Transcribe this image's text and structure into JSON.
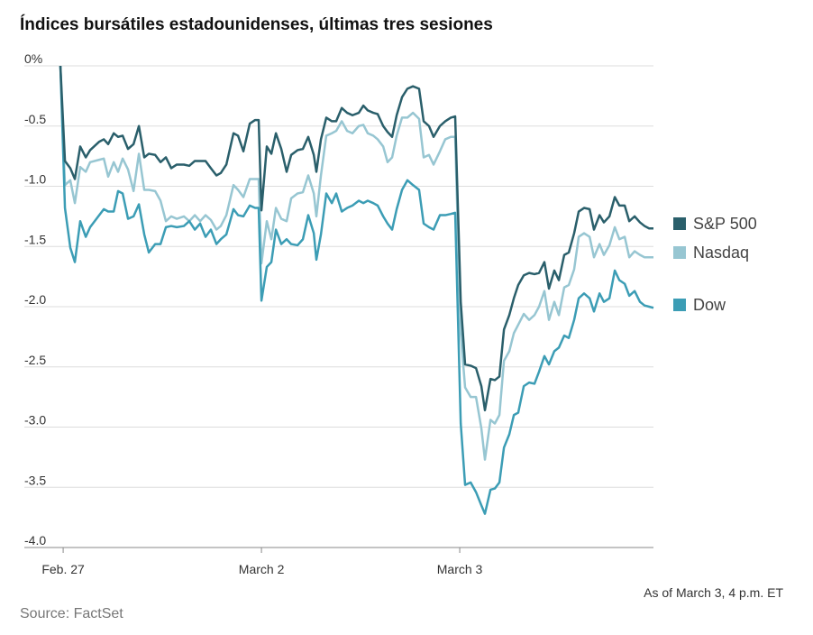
{
  "chart_data": {
    "type": "line",
    "title": "Índices bursátiles estadounidenses, últimas tres sesiones",
    "note": "As of March 3, 4 p.m. ET",
    "source": "Source: FactSet",
    "x": [
      -0.014,
      0.009,
      0.036,
      0.059,
      0.086,
      0.114,
      0.136,
      0.182,
      0.205,
      0.227,
      0.255,
      0.277,
      0.3,
      0.327,
      0.355,
      0.382,
      0.409,
      0.432,
      0.464,
      0.491,
      0.518,
      0.545,
      0.573,
      0.609,
      0.636,
      0.664,
      0.691,
      0.718,
      0.745,
      0.773,
      0.795,
      0.823,
      0.859,
      0.882,
      0.909,
      0.941,
      0.968,
      0.986,
      1.0,
      1.027,
      1.05,
      1.073,
      1.1,
      1.127,
      1.15,
      1.182,
      1.209,
      1.236,
      1.264,
      1.277,
      1.3,
      1.327,
      1.355,
      1.377,
      1.405,
      1.432,
      1.459,
      1.491,
      1.514,
      1.536,
      1.564,
      1.586,
      1.614,
      1.636,
      1.659,
      1.682,
      1.709,
      1.736,
      1.764,
      1.795,
      1.818,
      1.845,
      1.868,
      1.9,
      1.927,
      1.955,
      1.977,
      2.005,
      2.027,
      2.055,
      2.082,
      2.109,
      2.127,
      2.155,
      2.177,
      2.2,
      2.223,
      2.25,
      2.273,
      2.295,
      2.323,
      2.35,
      2.377,
      2.4,
      2.427,
      2.45,
      2.477,
      2.5,
      2.527,
      2.55,
      2.577,
      2.6,
      2.627,
      2.655,
      2.677,
      2.705,
      2.727,
      2.755,
      2.782,
      2.805,
      2.832,
      2.855,
      2.882,
      2.909,
      2.932,
      2.955,
      2.977
    ],
    "series": [
      {
        "name": "S&P 500",
        "color": "#2a5f6b",
        "values": [
          0,
          -0.79,
          -0.85,
          -0.94,
          -0.67,
          -0.76,
          -0.7,
          -0.63,
          -0.61,
          -0.65,
          -0.56,
          -0.59,
          -0.58,
          -0.69,
          -0.65,
          -0.5,
          -0.76,
          -0.73,
          -0.74,
          -0.8,
          -0.76,
          -0.85,
          -0.82,
          -0.82,
          -0.83,
          -0.79,
          -0.79,
          -0.79,
          -0.85,
          -0.91,
          -0.89,
          -0.82,
          -0.56,
          -0.58,
          -0.71,
          -0.48,
          -0.45,
          -0.45,
          -1.2,
          -0.67,
          -0.73,
          -0.56,
          -0.69,
          -0.88,
          -0.74,
          -0.7,
          -0.69,
          -0.59,
          -0.74,
          -0.88,
          -0.61,
          -0.43,
          -0.46,
          -0.46,
          -0.35,
          -0.39,
          -0.41,
          -0.39,
          -0.33,
          -0.37,
          -0.39,
          -0.4,
          -0.5,
          -0.55,
          -0.59,
          -0.41,
          -0.26,
          -0.19,
          -0.17,
          -0.19,
          -0.46,
          -0.5,
          -0.59,
          -0.5,
          -0.46,
          -0.43,
          -0.42,
          -1.96,
          -2.48,
          -2.49,
          -2.51,
          -2.66,
          -2.86,
          -2.6,
          -2.61,
          -2.58,
          -2.19,
          -2.07,
          -1.93,
          -1.82,
          -1.74,
          -1.72,
          -1.73,
          -1.72,
          -1.63,
          -1.85,
          -1.7,
          -1.78,
          -1.57,
          -1.55,
          -1.39,
          -1.21,
          -1.18,
          -1.19,
          -1.36,
          -1.24,
          -1.3,
          -1.25,
          -1.09,
          -1.16,
          -1.16,
          -1.29,
          -1.25,
          -1.3,
          -1.33,
          -1.35,
          -1.35
        ]
      },
      {
        "name": "Nasdaq",
        "color": "#97c6d2",
        "values": [
          0,
          -0.99,
          -0.95,
          -1.14,
          -0.84,
          -0.88,
          -0.8,
          -0.78,
          -0.77,
          -0.92,
          -0.8,
          -0.88,
          -0.77,
          -0.86,
          -1.04,
          -0.73,
          -1.03,
          -1.03,
          -1.04,
          -1.12,
          -1.29,
          -1.25,
          -1.27,
          -1.25,
          -1.29,
          -1.24,
          -1.29,
          -1.24,
          -1.28,
          -1.36,
          -1.33,
          -1.24,
          -0.99,
          -1.03,
          -1.09,
          -0.94,
          -0.94,
          -0.94,
          -1.64,
          -1.29,
          -1.44,
          -1.18,
          -1.27,
          -1.29,
          -1.1,
          -1.06,
          -1.05,
          -0.91,
          -1.06,
          -1.25,
          -0.91,
          -0.58,
          -0.56,
          -0.54,
          -0.46,
          -0.54,
          -0.56,
          -0.5,
          -0.49,
          -0.56,
          -0.58,
          -0.61,
          -0.67,
          -0.8,
          -0.76,
          -0.58,
          -0.43,
          -0.43,
          -0.39,
          -0.44,
          -0.76,
          -0.74,
          -0.82,
          -0.71,
          -0.61,
          -0.59,
          -0.59,
          -2.22,
          -2.67,
          -2.75,
          -2.75,
          -3.01,
          -3.27,
          -2.94,
          -2.97,
          -2.9,
          -2.45,
          -2.37,
          -2.22,
          -2.15,
          -2.06,
          -2.11,
          -2.07,
          -2.0,
          -1.87,
          -2.11,
          -1.96,
          -2.07,
          -1.84,
          -1.82,
          -1.69,
          -1.42,
          -1.39,
          -1.42,
          -1.59,
          -1.48,
          -1.57,
          -1.49,
          -1.34,
          -1.44,
          -1.42,
          -1.59,
          -1.54,
          -1.57,
          -1.59,
          -1.59,
          -1.59
        ]
      },
      {
        "name": "Dow",
        "color": "#3c9db5",
        "values": [
          0,
          -1.18,
          -1.51,
          -1.63,
          -1.29,
          -1.42,
          -1.34,
          -1.24,
          -1.19,
          -1.21,
          -1.21,
          -1.04,
          -1.06,
          -1.27,
          -1.25,
          -1.15,
          -1.4,
          -1.55,
          -1.48,
          -1.48,
          -1.34,
          -1.33,
          -1.34,
          -1.33,
          -1.29,
          -1.36,
          -1.31,
          -1.42,
          -1.36,
          -1.48,
          -1.44,
          -1.4,
          -1.19,
          -1.24,
          -1.25,
          -1.16,
          -1.18,
          -1.18,
          -1.95,
          -1.67,
          -1.63,
          -1.36,
          -1.48,
          -1.44,
          -1.48,
          -1.49,
          -1.44,
          -1.24,
          -1.39,
          -1.61,
          -1.4,
          -1.06,
          -1.14,
          -1.06,
          -1.21,
          -1.18,
          -1.16,
          -1.12,
          -1.14,
          -1.12,
          -1.14,
          -1.16,
          -1.25,
          -1.31,
          -1.36,
          -1.19,
          -1.03,
          -0.95,
          -0.99,
          -1.03,
          -1.31,
          -1.34,
          -1.36,
          -1.24,
          -1.24,
          -1.23,
          -1.22,
          -2.97,
          -3.48,
          -3.46,
          -3.54,
          -3.65,
          -3.72,
          -3.52,
          -3.51,
          -3.46,
          -3.17,
          -3.06,
          -2.9,
          -2.88,
          -2.66,
          -2.63,
          -2.64,
          -2.54,
          -2.41,
          -2.48,
          -2.37,
          -2.34,
          -2.24,
          -2.26,
          -2.11,
          -1.93,
          -1.89,
          -1.93,
          -2.04,
          -1.89,
          -1.96,
          -1.93,
          -1.7,
          -1.78,
          -1.81,
          -1.91,
          -1.87,
          -1.96,
          -1.99,
          -2.0,
          -2.01
        ]
      }
    ],
    "xlim": [
      -0.014,
      2.977
    ],
    "xticks": [
      {
        "value": 0,
        "label": "Feb. 27"
      },
      {
        "value": 1,
        "label": "March 2"
      },
      {
        "value": 2,
        "label": "March 3"
      }
    ],
    "ylim": [
      -4,
      0
    ],
    "yticks": [
      {
        "value": 0,
        "label": "0%"
      },
      -0.5,
      {
        "value": -1,
        "label": "-1.0"
      },
      -1.5,
      {
        "value": -2,
        "label": "-2.0"
      },
      -2.5,
      {
        "value": -3,
        "label": "-3.0"
      },
      -3.5,
      {
        "value": -4,
        "label": "-4.0"
      }
    ],
    "grid": true,
    "legend": "right"
  }
}
